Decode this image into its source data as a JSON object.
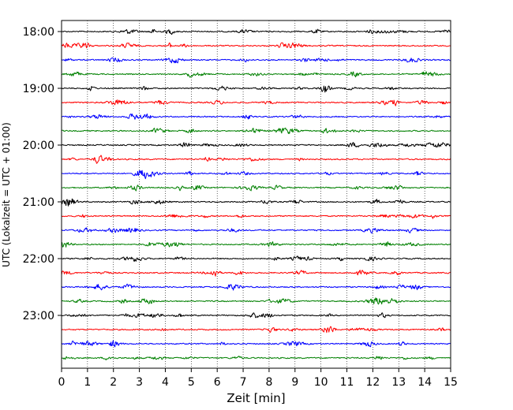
{
  "chart_data": {
    "type": "line",
    "title": "",
    "xlabel": "Zeit  [min]",
    "ylabel": "UTC (Lokalzeit = UTC + 01:00)",
    "xlim": [
      0,
      15
    ],
    "x_ticks": [
      "0",
      "1",
      "2",
      "3",
      "4",
      "5",
      "6",
      "7",
      "8",
      "9",
      "10",
      "11",
      "12",
      "13",
      "14",
      "15"
    ],
    "y_tick_labels": [
      "18:00",
      "19:00",
      "20:00",
      "21:00",
      "22:00",
      "23:00"
    ],
    "grid": "vertical dotted lines at each minute",
    "traces_per_hour": 4,
    "trace_minutes": 15,
    "trace_colors": [
      "#000000",
      "#ff0000",
      "#0000ff",
      "#008000"
    ],
    "trace_count": 24
  }
}
